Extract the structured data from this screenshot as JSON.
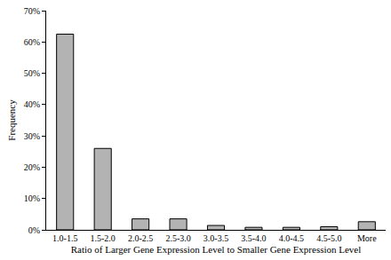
{
  "chart_data": {
    "type": "bar",
    "x_label": "Ratio of Larger Gene Expression Level to Smaller Gene Expression Level",
    "y_label": "Frequency",
    "categories": [
      "1.0-1.5",
      "1.5-2.0",
      "2.0-2.5",
      "2.5-3.0",
      "3.0-3.5",
      "3.5-4.0",
      "4.0-4.5",
      "4.5-5.0",
      "More"
    ],
    "values": [
      62.5,
      26,
      3.5,
      3.5,
      1.4,
      0.8,
      0.8,
      1.0,
      2.6
    ],
    "color": "#b3b3b3",
    "ylim": [
      0,
      70
    ],
    "yticks": [
      {
        "value": 0,
        "label": "0%"
      },
      {
        "value": 10,
        "label": "10%"
      },
      {
        "value": 20,
        "label": "20%"
      },
      {
        "value": 30,
        "label": "30%"
      },
      {
        "value": 40,
        "label": "40%"
      },
      {
        "value": 50,
        "label": "50%"
      },
      {
        "value": 60,
        "label": "60%"
      },
      {
        "value": 70,
        "label": "70%"
      }
    ],
    "grid": false
  }
}
